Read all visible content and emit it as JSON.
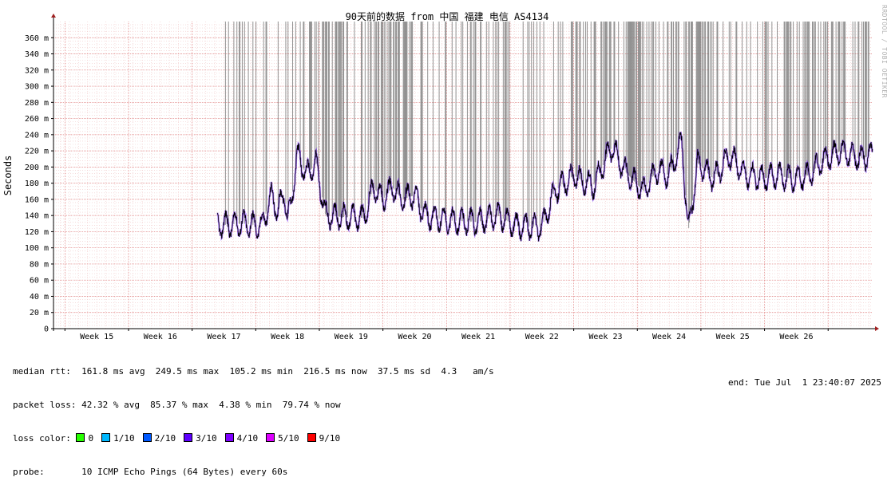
{
  "chart_data": {
    "type": "line",
    "title": "90天前的数据 from 中国 福建 电信 AS4134",
    "ylabel": "Seconds",
    "xlabel": "",
    "ylim": [
      0,
      380
    ],
    "yticks": [
      {
        "v": 0,
        "label": "0"
      },
      {
        "v": 20,
        "label": "20 m"
      },
      {
        "v": 40,
        "label": "40 m"
      },
      {
        "v": 60,
        "label": "60 m"
      },
      {
        "v": 80,
        "label": "80 m"
      },
      {
        "v": 100,
        "label": "100 m"
      },
      {
        "v": 120,
        "label": "120 m"
      },
      {
        "v": 140,
        "label": "140 m"
      },
      {
        "v": 160,
        "label": "160 m"
      },
      {
        "v": 180,
        "label": "180 m"
      },
      {
        "v": 200,
        "label": "200 m"
      },
      {
        "v": 220,
        "label": "220 m"
      },
      {
        "v": 240,
        "label": "240 m"
      },
      {
        "v": 260,
        "label": "260 m"
      },
      {
        "v": 280,
        "label": "280 m"
      },
      {
        "v": 300,
        "label": "300 m"
      },
      {
        "v": 320,
        "label": "320 m"
      },
      {
        "v": 340,
        "label": "340 m"
      },
      {
        "v": 360,
        "label": "360 m"
      }
    ],
    "xlim": [
      14.32,
      27.2
    ],
    "xticks": [
      {
        "v": 15,
        "label": "Week 15"
      },
      {
        "v": 16,
        "label": "Week 16"
      },
      {
        "v": 17,
        "label": "Week 17"
      },
      {
        "v": 18,
        "label": "Week 18"
      },
      {
        "v": 19,
        "label": "Week 19"
      },
      {
        "v": 20,
        "label": "Week 20"
      },
      {
        "v": 21,
        "label": "Week 21"
      },
      {
        "v": 22,
        "label": "Week 22"
      },
      {
        "v": 23,
        "label": "Week 23"
      },
      {
        "v": 24,
        "label": "Week 24"
      },
      {
        "v": 25,
        "label": "Week 25"
      },
      {
        "v": 26,
        "label": "Week 26"
      }
    ],
    "median_rtt_series": {
      "name": "median rtt",
      "x_start_week": 16.9,
      "x_end_week": 27.2,
      "points": [
        [
          16.9,
          128
        ],
        [
          17.3,
          130
        ],
        [
          17.6,
          127
        ],
        [
          17.75,
          165
        ],
        [
          17.85,
          145
        ],
        [
          17.95,
          170
        ],
        [
          18.0,
          135
        ],
        [
          18.05,
          150
        ],
        [
          18.15,
          215
        ],
        [
          18.3,
          190
        ],
        [
          18.45,
          205
        ],
        [
          18.6,
          140
        ],
        [
          18.9,
          138
        ],
        [
          19.2,
          137
        ],
        [
          19.35,
          175
        ],
        [
          19.5,
          160
        ],
        [
          19.65,
          175
        ],
        [
          19.8,
          160
        ],
        [
          20.0,
          165
        ],
        [
          20.15,
          140
        ],
        [
          20.5,
          134
        ],
        [
          21.0,
          132
        ],
        [
          21.3,
          140
        ],
        [
          21.6,
          127
        ],
        [
          22.0,
          126
        ],
        [
          22.2,
          170
        ],
        [
          22.5,
          190
        ],
        [
          22.8,
          175
        ],
        [
          23.1,
          225
        ],
        [
          23.3,
          195
        ],
        [
          23.6,
          170
        ],
        [
          23.8,
          195
        ],
        [
          24.0,
          190
        ],
        [
          24.2,
          232
        ],
        [
          24.3,
          120
        ],
        [
          24.45,
          205
        ],
        [
          24.7,
          185
        ],
        [
          24.95,
          215
        ],
        [
          25.2,
          190
        ],
        [
          25.45,
          185
        ],
        [
          25.7,
          190
        ],
        [
          25.95,
          185
        ],
        [
          26.2,
          190
        ],
        [
          26.45,
          210
        ],
        [
          26.7,
          220
        ],
        [
          27.0,
          210
        ],
        [
          27.2,
          215
        ]
      ]
    },
    "packet_loss_spikes_top_seconds": 0.38
  },
  "legend": {
    "median_rtt": "median rtt:  161.8 ms avg  249.5 ms max  105.2 ms min  216.5 ms now  37.5 ms sd  4.3   am/s",
    "packet_loss": "packet loss: 42.32 % avg  85.37 % max  4.38 % min  79.74 % now",
    "loss_color_label": "loss color:",
    "loss_colors": [
      {
        "label": "0",
        "color": "#26ff00"
      },
      {
        "label": "1/10",
        "color": "#00b8ff"
      },
      {
        "label": "2/10",
        "color": "#0059ff"
      },
      {
        "label": "3/10",
        "color": "#5e00ff"
      },
      {
        "label": "4/10",
        "color": "#7e00ff"
      },
      {
        "label": "5/10",
        "color": "#dd00ff"
      },
      {
        "label": "9/10",
        "color": "#ff0000"
      }
    ],
    "probe": "probe:       10 ICMP Echo Pings (64 Bytes) every 60s",
    "end": "end: Tue Jul  1 23:40:07 2025"
  },
  "watermark": "RRDTOOL / TOBI OETIKER",
  "colors": {
    "grid_minor": "#f0c8c8",
    "grid_major": "#e08080",
    "spike": "#808080",
    "line": "#000000",
    "axis": "#000000",
    "arrow": "#a02020"
  }
}
